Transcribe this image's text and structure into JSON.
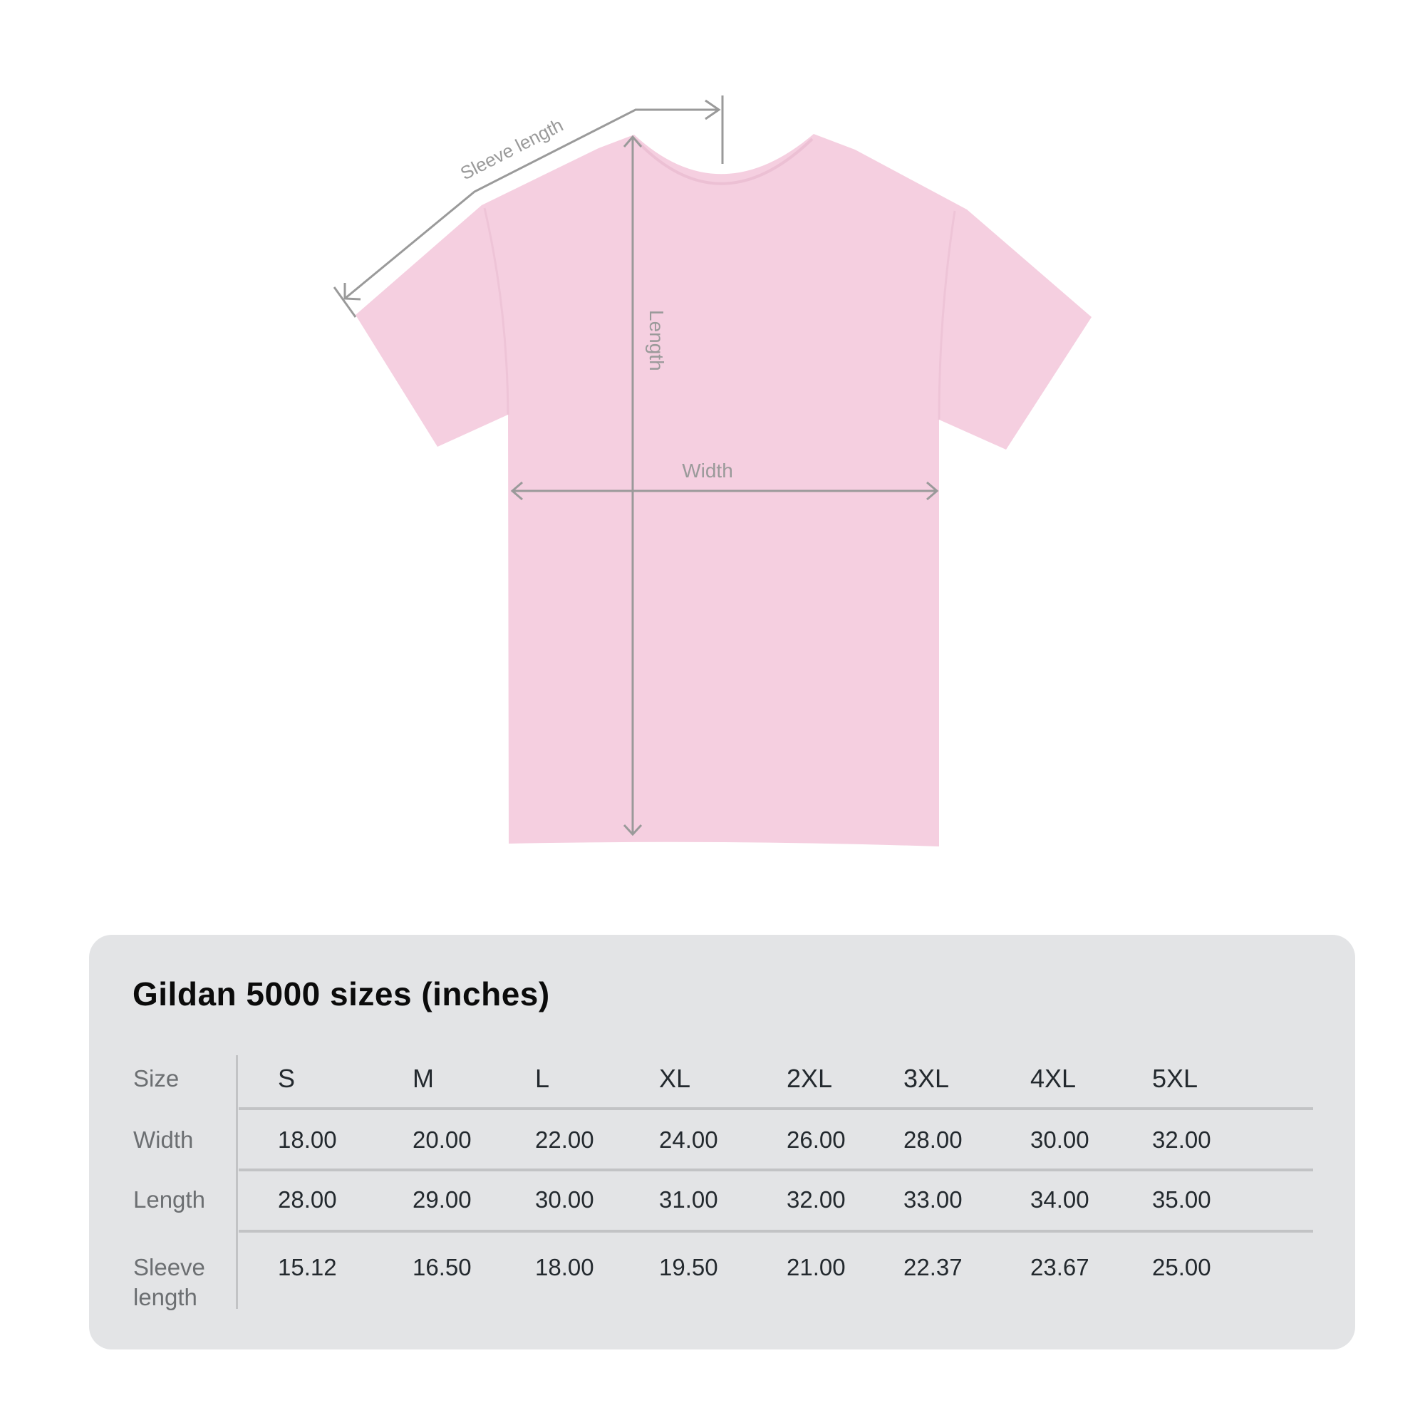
{
  "diagram": {
    "labels": {
      "sleeve": "Sleeve length",
      "length": "Length",
      "width": "Width"
    },
    "shirt_color": "#f5cfe0",
    "line_color": "#9a9a9a"
  },
  "table": {
    "title": "Gildan 5000 sizes (inches)",
    "row_labels": [
      "Size",
      "Width",
      "Length",
      "Sleeve",
      "length"
    ],
    "sizes": [
      "S",
      "M",
      "L",
      "XL",
      "2XL",
      "3XL",
      "4XL",
      "5XL"
    ],
    "width": [
      "18.00",
      "20.00",
      "22.00",
      "24.00",
      "26.00",
      "28.00",
      "30.00",
      "32.00"
    ],
    "length": [
      "28.00",
      "29.00",
      "30.00",
      "31.00",
      "32.00",
      "33.00",
      "34.00",
      "35.00"
    ],
    "sleeve_length": [
      "15.12",
      "16.50",
      "18.00",
      "19.50",
      "21.00",
      "22.37",
      "23.67",
      "25.00"
    ],
    "panel_color": "#e3e4e6"
  }
}
